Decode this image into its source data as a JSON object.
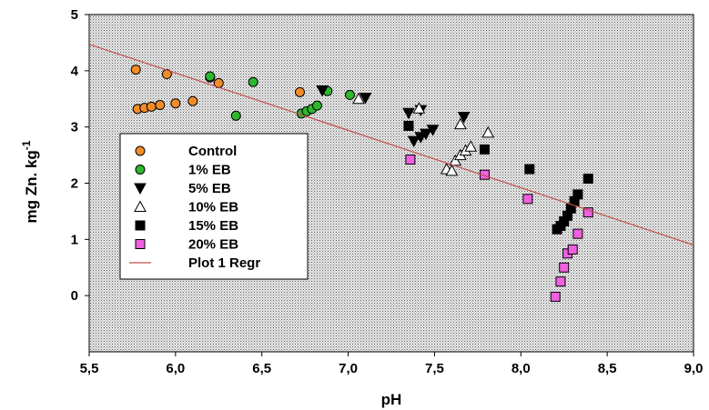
{
  "chart_data": {
    "type": "scatter",
    "xlabel": "pH",
    "ylabel": "mg Zn. kg",
    "ylabel_superscript": "-1",
    "xlim": [
      5.5,
      9.0
    ],
    "ylim": [
      -1,
      5
    ],
    "x_ticks": [
      5.5,
      6.0,
      6.5,
      7.0,
      7.5,
      8.0,
      8.5,
      9.0
    ],
    "x_tick_labels": [
      "5,5",
      "6,0",
      "6,5",
      "7,0",
      "7,5",
      "8,0",
      "8,5",
      "9,0"
    ],
    "y_ticks": [
      0,
      1,
      2,
      3,
      4,
      5
    ],
    "y_tick_labels": [
      "0",
      "1",
      "2",
      "3",
      "4",
      "5"
    ],
    "legend_placement": "bottom-left",
    "plot_background": "dotted-gray",
    "series": [
      {
        "name": "Control",
        "marker": "circle",
        "fill": "#f28c28",
        "stroke": "#000000",
        "points": [
          [
            5.77,
            4.02
          ],
          [
            5.95,
            3.94
          ],
          [
            6.2,
            3.88
          ],
          [
            6.25,
            3.78
          ],
          [
            5.78,
            3.32
          ],
          [
            5.82,
            3.34
          ],
          [
            5.86,
            3.36
          ],
          [
            5.91,
            3.39
          ],
          [
            6.0,
            3.42
          ],
          [
            6.1,
            3.46
          ],
          [
            6.72,
            3.62
          ]
        ]
      },
      {
        "name": "1% EB",
        "marker": "circle",
        "fill": "#2db82d",
        "stroke": "#000000",
        "points": [
          [
            6.2,
            3.9
          ],
          [
            6.45,
            3.8
          ],
          [
            6.35,
            3.2
          ],
          [
            6.73,
            3.24
          ],
          [
            6.76,
            3.28
          ],
          [
            6.79,
            3.32
          ],
          [
            6.82,
            3.38
          ],
          [
            6.88,
            3.64
          ],
          [
            7.01,
            3.57
          ]
        ]
      },
      {
        "name": " 5%  EB",
        "marker": "triangle-down",
        "fill": "#000000",
        "stroke": "#000000",
        "points": [
          [
            6.85,
            3.65
          ],
          [
            7.1,
            3.52
          ],
          [
            7.35,
            3.25
          ],
          [
            7.42,
            3.3
          ],
          [
            7.67,
            3.18
          ],
          [
            7.38,
            2.75
          ],
          [
            7.42,
            2.82
          ],
          [
            7.45,
            2.88
          ],
          [
            7.49,
            2.95
          ]
        ]
      },
      {
        "name": "10%  EB",
        "marker": "triangle-up",
        "fill": "#ffffff",
        "stroke": "#000000",
        "points": [
          [
            7.06,
            3.5
          ],
          [
            7.41,
            3.33
          ],
          [
            7.65,
            3.05
          ],
          [
            7.81,
            2.9
          ],
          [
            7.57,
            2.25
          ],
          [
            7.6,
            2.22
          ],
          [
            7.62,
            2.4
          ],
          [
            7.65,
            2.5
          ],
          [
            7.68,
            2.58
          ],
          [
            7.71,
            2.65
          ]
        ]
      },
      {
        "name": "15% EB",
        "marker": "square",
        "fill": "#000000",
        "stroke": "#000000",
        "points": [
          [
            7.35,
            3.02
          ],
          [
            7.79,
            2.6
          ],
          [
            8.05,
            2.25
          ],
          [
            8.39,
            2.08
          ],
          [
            8.21,
            1.18
          ],
          [
            8.23,
            1.24
          ],
          [
            8.25,
            1.32
          ],
          [
            8.27,
            1.42
          ],
          [
            8.29,
            1.55
          ],
          [
            8.31,
            1.68
          ],
          [
            8.33,
            1.8
          ]
        ]
      },
      {
        "name": "20% EB",
        "marker": "square",
        "fill": "#f060e0",
        "stroke": "#000000",
        "points": [
          [
            7.36,
            2.42
          ],
          [
            7.79,
            2.15
          ],
          [
            8.04,
            1.72
          ],
          [
            8.39,
            1.48
          ],
          [
            8.33,
            1.1
          ],
          [
            8.2,
            -0.02
          ],
          [
            8.23,
            0.25
          ],
          [
            8.25,
            0.5
          ],
          [
            8.27,
            0.75
          ],
          [
            8.3,
            0.82
          ]
        ]
      },
      {
        "name": "Plot 1 Regr",
        "marker": "line",
        "fill": "none",
        "stroke": "#c0504d",
        "points": [
          [
            5.5,
            4.47
          ],
          [
            9.0,
            0.9
          ]
        ]
      }
    ]
  }
}
